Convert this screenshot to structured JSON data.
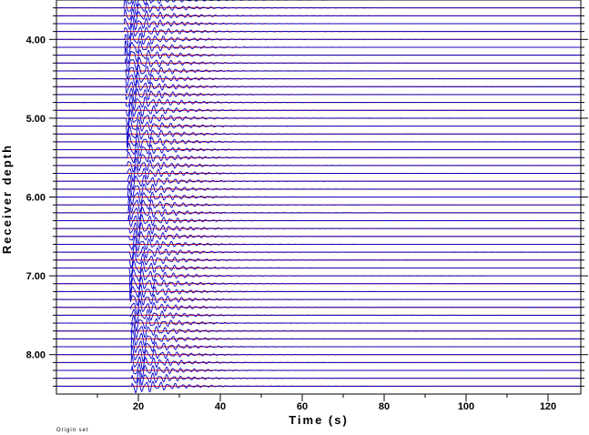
{
  "chart_data": {
    "type": "line",
    "subtype": "seismogram-record-section",
    "xlabel": "Time (s)",
    "ylabel": "Receiver depth",
    "xlim": [
      0,
      128
    ],
    "ylim": [
      3.5,
      8.5
    ],
    "y_inverted": true,
    "x_ticks": [
      20,
      40,
      60,
      80,
      100,
      120
    ],
    "x_tick_labels": [
      "20",
      "40",
      "60",
      "80",
      "100",
      "120"
    ],
    "y_ticks": [
      4.0,
      5.0,
      6.0,
      7.0,
      8.0
    ],
    "y_tick_labels": [
      "4.00",
      "5.00",
      "6.00",
      "7.00",
      "8.00"
    ],
    "trace_depth_start": 3.5,
    "trace_depth_end": 8.4,
    "trace_depth_step": 0.1,
    "baseline_color": "#cc0000",
    "trace_color": "#0000cc",
    "onset_time_s": 16.5,
    "main_wavetrain_end_s": 30,
    "coda_end_s": 45,
    "grid": false,
    "legend": "none"
  },
  "footnote": "Origin set"
}
